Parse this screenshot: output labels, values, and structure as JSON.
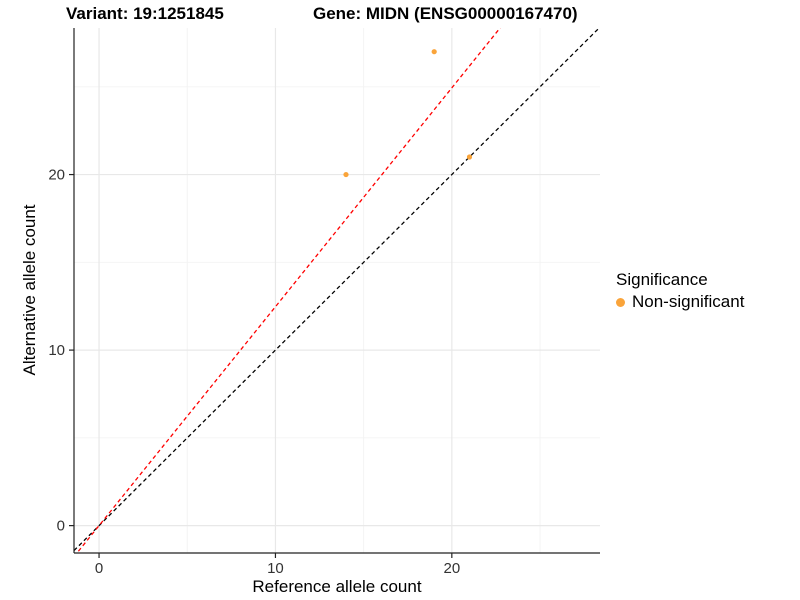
{
  "chart_data": {
    "type": "scatter",
    "titles": [
      "Variant: 19:1251845",
      "Gene: MIDN (ENSG00000167470)"
    ],
    "xlabel": "Reference allele count",
    "ylabel": "Alternative allele count",
    "x": {
      "domain": [
        -1.42,
        28.4
      ],
      "ticks": [
        0,
        10,
        20
      ],
      "minor_ticks": [
        5,
        15,
        25
      ]
    },
    "y": {
      "domain": [
        -1.56,
        28.35
      ],
      "ticks": [
        0,
        10,
        20
      ],
      "minor_ticks": [
        5,
        15,
        25
      ]
    },
    "grid": "on",
    "points": [
      {
        "x": 19,
        "y": 27,
        "significance": "Non-significant"
      },
      {
        "x": 14,
        "y": 20,
        "significance": "Non-significant"
      },
      {
        "x": 21,
        "y": 21,
        "significance": "Non-significant"
      }
    ],
    "point_color": "#FAA43A",
    "point_radius_px": 2.6,
    "lines": [
      {
        "name": "identity-line",
        "slope": 1.0,
        "intercept": 0,
        "color": "#000000",
        "style": "dashed"
      },
      {
        "name": "ratio-line",
        "slope": 1.247,
        "intercept": 0,
        "color": "#FF0000",
        "style": "dashed"
      }
    ],
    "legend": {
      "title": "Significance",
      "position": "right",
      "items": [
        {
          "label": "Non-significant",
          "color": "#FAA43A"
        }
      ]
    },
    "colors": {
      "grid_major": "#E8E8E8",
      "grid_minor": "#F3F3F3",
      "axis": "#222222",
      "tick_label": "#333333"
    }
  }
}
